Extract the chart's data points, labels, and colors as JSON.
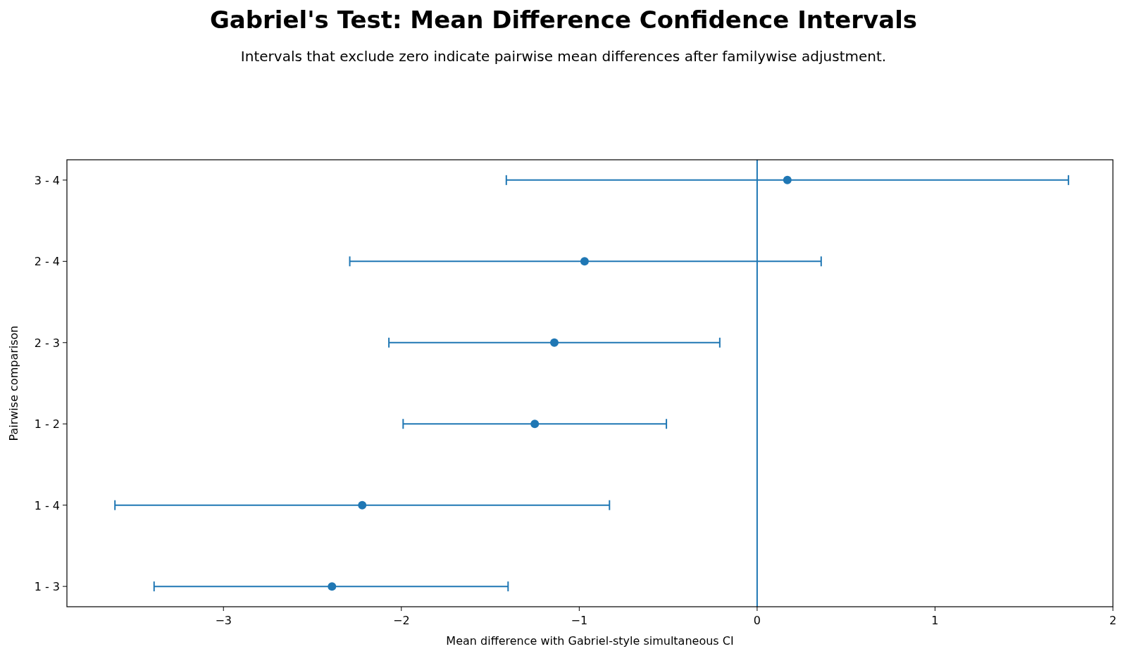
{
  "chart_data": {
    "type": "scatter",
    "orientation": "horizontal",
    "title": "Gabriel's Test: Mean Difference Confidence Intervals",
    "subtitle": "Intervals that exclude zero indicate pairwise mean differences after familywise adjustment.",
    "xlabel": "Mean difference with Gabriel-style simultaneous CI",
    "ylabel": "Pairwise comparison",
    "categories": [
      "3 - 4",
      "2 - 4",
      "2 - 3",
      "1 - 2",
      "1 - 4",
      "1 - 3"
    ],
    "series": [
      {
        "color": "#1f77b4",
        "values": [
          0.17,
          -0.97,
          -1.14,
          -1.25,
          -2.22,
          -2.39
        ],
        "errors": [
          [
            -1.41,
            1.75
          ],
          [
            -2.29,
            0.36
          ],
          [
            -2.07,
            -0.21
          ],
          [
            -1.99,
            -0.51
          ],
          [
            -3.61,
            -0.83
          ],
          [
            -3.39,
            -1.4
          ]
        ]
      }
    ],
    "marker": "circle",
    "xlim": [
      -3.88,
      2
    ],
    "xticks": [
      {
        "value": -3,
        "label": "−3"
      },
      {
        "value": -2,
        "label": "−2"
      },
      {
        "value": -1,
        "label": "−1"
      },
      0,
      1,
      2
    ],
    "ref_lines": [
      {
        "axis": "x",
        "value": 0,
        "color": "#1f77b4"
      }
    ],
    "grid": false
  }
}
